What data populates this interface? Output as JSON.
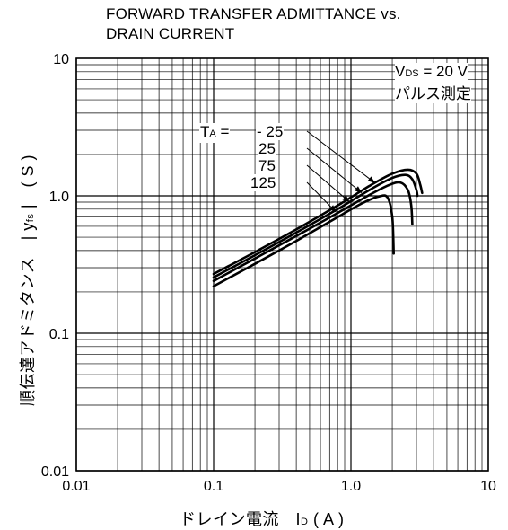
{
  "chart_data": {
    "type": "line",
    "title_lines": [
      "FORWARD TRANSFER ADMITTANCE vs.",
      "DRAIN CURRENT"
    ],
    "xlabel": {
      "main": "ドレイン電流　I",
      "sub": "D",
      "rest": " ( A )"
    },
    "ylabel": {
      "main": "順伝達アドミタンス　| y",
      "sub": "fs",
      "rest": " |　( S )"
    },
    "x_scale": "log",
    "y_scale": "log",
    "xlim": [
      0.01,
      10
    ],
    "ylim": [
      0.01,
      10
    ],
    "x_ticks": [
      "0.01",
      "0.1",
      "1.0",
      "10"
    ],
    "y_ticks": [
      "10",
      "1.0",
      "0.1",
      "0.01"
    ],
    "x_tick_values": [
      0.01,
      0.1,
      1,
      10
    ],
    "y_tick_values": [
      10,
      1,
      0.1,
      0.01
    ],
    "grid": true,
    "condition": {
      "line1_pre": "V",
      "line1_sub": "DS",
      "line1_post": " = 20 V",
      "line2": "パルス測定"
    },
    "temp_label": {
      "pre": "T",
      "sub": "A",
      "eq": " = "
    },
    "series": [
      {
        "name": "- 25",
        "x": [
          0.1,
          0.2,
          0.4,
          0.8,
          1.4,
          2.0,
          2.6,
          3.0,
          3.2,
          3.3
        ],
        "y": [
          0.27,
          0.39,
          0.57,
          0.85,
          1.2,
          1.45,
          1.55,
          1.45,
          1.2,
          1.05
        ]
      },
      {
        "name": "25",
        "x": [
          0.1,
          0.2,
          0.4,
          0.8,
          1.4,
          2.0,
          2.5,
          2.8,
          3.0,
          3.05
        ],
        "y": [
          0.255,
          0.37,
          0.54,
          0.8,
          1.12,
          1.35,
          1.42,
          1.32,
          1.1,
          1.0
        ]
      },
      {
        "name": "75",
        "x": [
          0.1,
          0.2,
          0.4,
          0.8,
          1.4,
          1.9,
          2.3,
          2.6,
          2.75,
          2.8
        ],
        "y": [
          0.24,
          0.35,
          0.51,
          0.75,
          1.03,
          1.2,
          1.25,
          1.1,
          0.85,
          0.62
        ]
      },
      {
        "name": "125",
        "x": [
          0.1,
          0.2,
          0.4,
          0.8,
          1.2,
          1.6,
          1.85,
          2.0,
          2.05
        ],
        "y": [
          0.22,
          0.32,
          0.47,
          0.7,
          0.88,
          0.99,
          0.97,
          0.7,
          0.38
        ]
      }
    ],
    "arrow_targets": [
      {
        "series": "- 25",
        "x": 1.5,
        "y": 1.24
      },
      {
        "series": "25",
        "x": 1.2,
        "y": 1.05
      },
      {
        "series": "75",
        "x": 0.98,
        "y": 0.9
      },
      {
        "series": "125",
        "x": 0.78,
        "y": 0.76
      }
    ]
  }
}
